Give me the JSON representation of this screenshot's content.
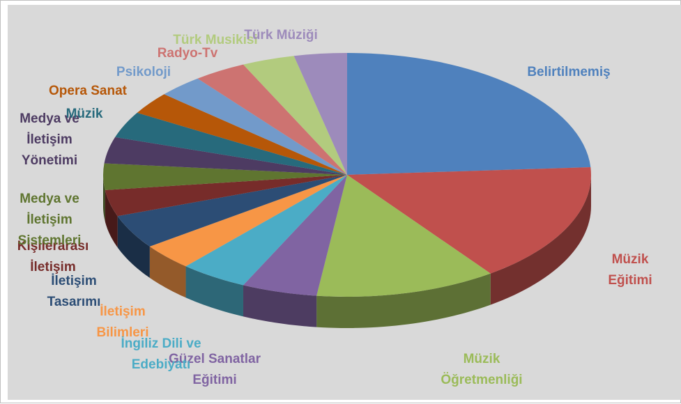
{
  "chart_data": {
    "type": "pie3d",
    "categories": [
      "Belirtilmemiş",
      "Müzik Eğitimi",
      "Müzik Öğretmenliği",
      "Güzel Sanatlar Eğitimi",
      "İngiliz Dili ve Edebiyatı",
      "İletişim Bilimleri",
      "İletişim Tasarımı",
      "Kişilerarası İletişim",
      "Medya ve İletişim Sistemleri",
      "Medya ve İletişim Yönetimi",
      "Müzik",
      "Opera Sanat",
      "Psikoloji",
      "Radyo-Tv",
      "Türk Musikisi",
      "Türk Müziği"
    ],
    "values": [
      24,
      16,
      12,
      5,
      4.5,
      3.5,
      4.5,
      3.5,
      3.5,
      3.5,
      3.5,
      3,
      3,
      3.5,
      3.5,
      3.5
    ],
    "colors": [
      "#4f81bd",
      "#c0504d",
      "#9bbb59",
      "#8064a2",
      "#4bacc6",
      "#f79646",
      "#2c4d75",
      "#772c2a",
      "#5f7530",
      "#4d3b62",
      "#276a7c",
      "#b65708",
      "#729aca",
      "#cd7371",
      "#b2cb7e",
      "#9d8bbb"
    ]
  }
}
